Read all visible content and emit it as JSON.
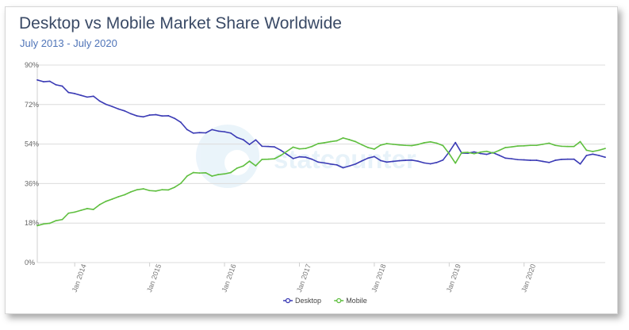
{
  "chart_data": {
    "type": "line",
    "title": "Desktop vs Mobile Market Share Worldwide",
    "subtitle": "July 2013 - July 2020",
    "xlabel": "",
    "ylabel": "",
    "ylim": [
      0,
      90
    ],
    "y_ticks": [
      "0%",
      "18%",
      "36%",
      "54%",
      "72%",
      "90%"
    ],
    "x_ticks": [
      "Jan 2014",
      "Jan 2015",
      "Jan 2016",
      "Jan 2017",
      "Jan 2018",
      "Jan 2019",
      "Jan 2020"
    ],
    "grid": true,
    "legend_position": "bottom",
    "watermark": "statcounter",
    "x_start": "2013-07",
    "series": [
      {
        "name": "Desktop",
        "color": "#3b3bb5",
        "values": [
          83.2,
          82.4,
          82.6,
          81.0,
          80.4,
          77.5,
          77.0,
          76.2,
          75.4,
          75.8,
          73.6,
          72.1,
          71.1,
          70.0,
          69.1,
          67.8,
          66.8,
          66.4,
          67.2,
          67.4,
          66.8,
          66.9,
          65.7,
          63.9,
          60.6,
          59.0,
          59.2,
          59.1,
          60.6,
          59.9,
          59.6,
          59.0,
          57.0,
          56.0,
          53.8,
          55.9,
          53.0,
          52.9,
          52.7,
          51.2,
          49.3,
          47.4,
          48.2,
          48.0,
          47.1,
          45.8,
          45.4,
          44.9,
          44.5,
          43.2,
          44.0,
          44.9,
          46.3,
          47.6,
          48.3,
          46.5,
          45.8,
          46.1,
          46.4,
          46.6,
          46.7,
          46.2,
          45.4,
          45.0,
          45.6,
          46.7,
          50.4,
          54.7,
          49.9,
          49.8,
          50.4,
          49.7,
          49.3,
          50.1,
          48.9,
          47.6,
          47.3,
          46.9,
          46.8,
          46.6,
          46.6,
          46.1,
          45.6,
          46.6,
          47.0,
          47.1,
          47.1,
          44.9,
          48.8,
          49.4,
          48.8,
          48.0
        ]
      },
      {
        "name": "Mobile",
        "color": "#5fbf3f",
        "values": [
          16.8,
          17.6,
          17.9,
          19.1,
          19.6,
          22.5,
          23.0,
          23.8,
          24.6,
          24.2,
          26.4,
          27.9,
          28.9,
          30.0,
          30.9,
          32.2,
          33.2,
          33.6,
          32.8,
          32.6,
          33.2,
          33.1,
          34.3,
          36.1,
          39.4,
          41.0,
          40.8,
          40.9,
          39.4,
          40.1,
          40.4,
          41.0,
          43.0,
          44.0,
          46.2,
          44.1,
          47.0,
          47.1,
          47.3,
          48.8,
          50.7,
          52.6,
          51.8,
          52.0,
          52.9,
          54.2,
          54.6,
          55.1,
          55.5,
          56.8,
          56.0,
          55.1,
          53.7,
          52.4,
          51.7,
          53.5,
          54.2,
          53.9,
          53.6,
          53.4,
          53.3,
          53.8,
          54.6,
          55.0,
          54.4,
          53.3,
          49.6,
          45.3,
          50.1,
          50.2,
          49.6,
          50.3,
          50.7,
          49.9,
          51.1,
          52.4,
          52.7,
          53.1,
          53.2,
          53.4,
          53.4,
          53.9,
          54.4,
          53.4,
          53.0,
          52.9,
          52.9,
          55.1,
          51.2,
          50.6,
          51.2,
          52.0
        ]
      }
    ]
  }
}
